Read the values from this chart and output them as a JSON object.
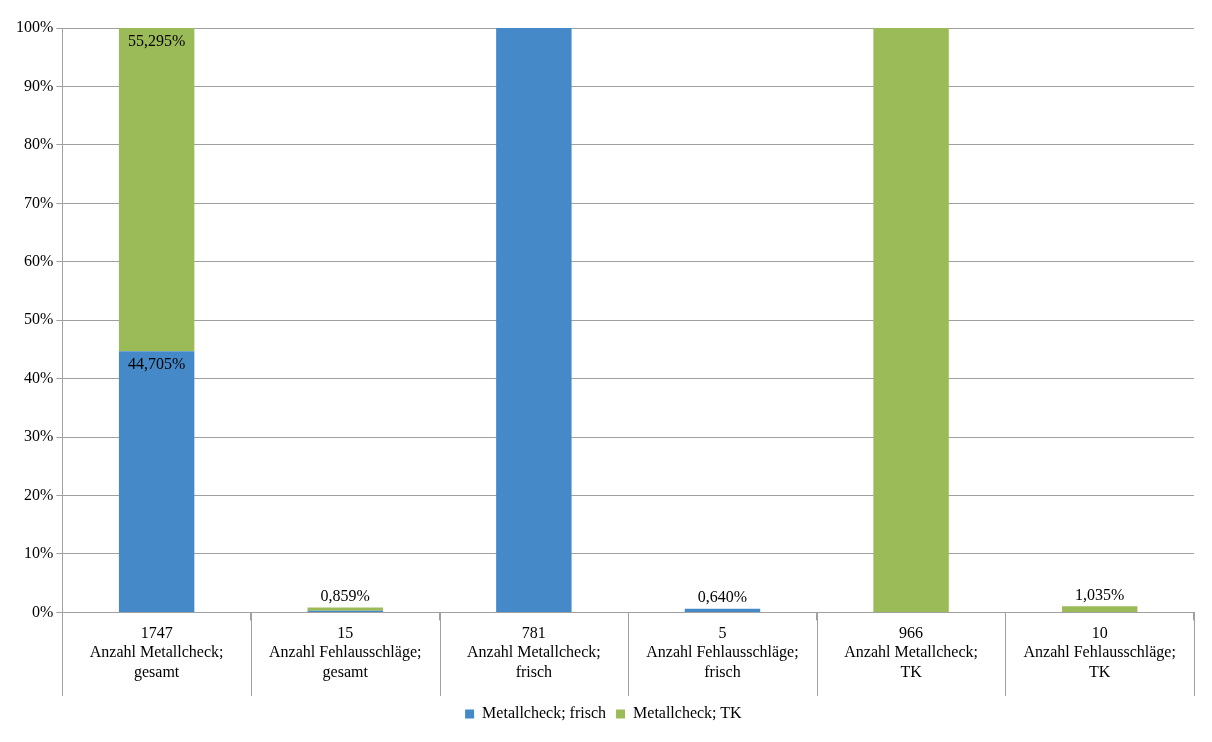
{
  "chart_data": {
    "type": "bar",
    "stacked": true,
    "categories": [
      "1747\nAnzahl Metallcheck;\ngesamt",
      "15\nAnzahl Fehlausschläge;\ngesamt",
      "781\nAnzahl Metallcheck;\nfrisch",
      "5\nAnzahl Fehlausschläge;\nfrisch",
      "966\nAnzahl Metallcheck;\nTK",
      "10\nAnzahl Fehlausschläge;\nTK"
    ],
    "series": [
      {
        "name": "Metallcheck; frisch",
        "color": "#4589c8",
        "values": [
          44.705,
          0.286,
          100,
          0.64,
          0,
          0
        ],
        "value_labels": [
          "44,705%",
          null,
          null,
          null,
          null,
          null
        ]
      },
      {
        "name": "Metallcheck; TK",
        "color": "#9bbb59",
        "values": [
          55.295,
          0.573,
          0,
          0,
          100,
          1.035
        ],
        "value_labels": [
          "55,295%",
          null,
          null,
          null,
          null,
          null
        ]
      }
    ],
    "totals": [
      null,
      "0,859%",
      null,
      "0,640%",
      null,
      "1,035%"
    ],
    "ylim": [
      0,
      100
    ],
    "yticks": [
      {
        "value": 0,
        "label": "0%"
      },
      {
        "value": 10,
        "label": "10%"
      },
      {
        "value": 20,
        "label": "20%"
      },
      {
        "value": 30,
        "label": "30%"
      },
      {
        "value": 40,
        "label": "40%"
      },
      {
        "value": 50,
        "label": "50%"
      },
      {
        "value": 60,
        "label": "60%"
      },
      {
        "value": 70,
        "label": "70%"
      },
      {
        "value": 80,
        "label": "80%"
      },
      {
        "value": 90,
        "label": "90%"
      },
      {
        "value": 100,
        "label": "100%"
      }
    ],
    "grid": "y",
    "legend": "bottom"
  }
}
